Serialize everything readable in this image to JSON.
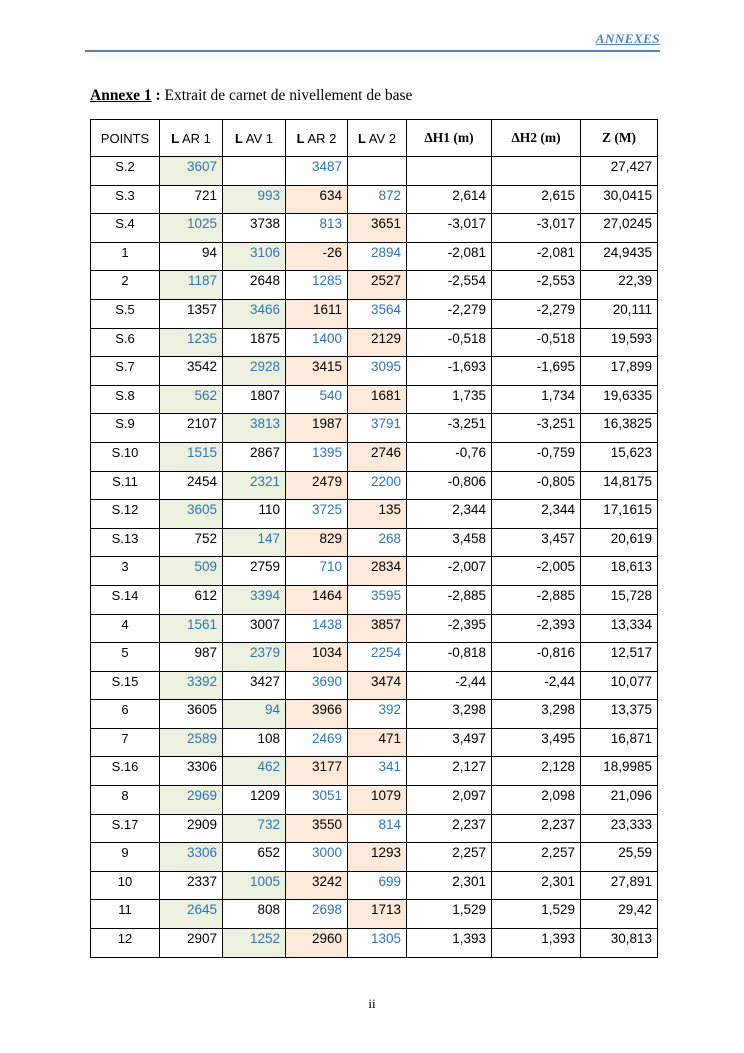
{
  "header": {
    "running_title": "ANNEXES",
    "rule_color": "#4f81bd"
  },
  "title": {
    "prefix": "Annexe 1",
    "colon": " : ",
    "text": "Extrait de carnet de nivellement de base"
  },
  "colors": {
    "accent_blue": "#4f81bd",
    "value_blue": "#2e75b6",
    "fill_green": "#ebf1de",
    "fill_orange": "#fde9d9"
  },
  "table": {
    "headers": [
      "POINTS",
      "L AR 1",
      "L AV 1",
      "L AR 2",
      "L AV 2",
      "ΔH1 (m)",
      "ΔH2 (m)",
      "Z (M)"
    ],
    "rows": [
      {
        "point": "S.2",
        "t": "A",
        "lar1": "3607",
        "lav1": "",
        "lar2": "3487",
        "lav2": "",
        "dh1": "",
        "dh2": "",
        "z": "27,427"
      },
      {
        "point": "S.3",
        "t": "B",
        "lar1": "721",
        "lav1": "993",
        "lar2": "634",
        "lav2": "872",
        "dh1": "2,614",
        "dh2": "2,615",
        "z": "30,0415"
      },
      {
        "point": "S.4",
        "t": "A",
        "lar1": "1025",
        "lav1": "3738",
        "lar2": "813",
        "lav2": "3651",
        "dh1": "-3,017",
        "dh2": "-3,017",
        "z": "27,0245"
      },
      {
        "point": "1",
        "t": "B",
        "lar1": "94",
        "lav1": "3106",
        "lar2": "-26",
        "lav2": "2894",
        "dh1": "-2,081",
        "dh2": "-2,081",
        "z": "24,9435"
      },
      {
        "point": "2",
        "t": "A",
        "lar1": "1187",
        "lav1": "2648",
        "lar2": "1285",
        "lav2": "2527",
        "dh1": "-2,554",
        "dh2": "-2,553",
        "z": "22,39"
      },
      {
        "point": "S.5",
        "t": "B",
        "lar1": "1357",
        "lav1": "3466",
        "lar2": "1611",
        "lav2": "3564",
        "dh1": "-2,279",
        "dh2": "-2,279",
        "z": "20,111"
      },
      {
        "point": "S.6",
        "t": "A",
        "lar1": "1235",
        "lav1": "1875",
        "lar2": "1400",
        "lav2": "2129",
        "dh1": "-0,518",
        "dh2": "-0,518",
        "z": "19,593"
      },
      {
        "point": "S.7",
        "t": "B",
        "lar1": "3542",
        "lav1": "2928",
        "lar2": "3415",
        "lav2": "3095",
        "dh1": "-1,693",
        "dh2": "-1,695",
        "z": "17,899"
      },
      {
        "point": "S.8",
        "t": "A",
        "lar1": "562",
        "lav1": "1807",
        "lar2": "540",
        "lav2": "1681",
        "dh1": "1,735",
        "dh2": "1,734",
        "z": "19,6335"
      },
      {
        "point": "S.9",
        "t": "B",
        "lar1": "2107",
        "lav1": "3813",
        "lar2": "1987",
        "lav2": "3791",
        "dh1": "-3,251",
        "dh2": "-3,251",
        "z": "16,3825"
      },
      {
        "point": "S.10",
        "t": "A",
        "lar1": "1515",
        "lav1": "2867",
        "lar2": "1395",
        "lav2": "2746",
        "dh1": "-0,76",
        "dh2": "-0,759",
        "z": "15,623"
      },
      {
        "point": "S.11",
        "t": "B",
        "lar1": "2454",
        "lav1": "2321",
        "lar2": "2479",
        "lav2": "2200",
        "dh1": "-0,806",
        "dh2": "-0,805",
        "z": "14,8175"
      },
      {
        "point": "S.12",
        "t": "A",
        "lar1": "3605",
        "lav1": "110",
        "lar2": "3725",
        "lav2": "135",
        "dh1": "2,344",
        "dh2": "2,344",
        "z": "17,1615"
      },
      {
        "point": "S.13",
        "t": "B",
        "lar1": "752",
        "lav1": "147",
        "lar2": "829",
        "lav2": "268",
        "dh1": "3,458",
        "dh2": "3,457",
        "z": "20,619"
      },
      {
        "point": "3",
        "t": "A",
        "lar1": "509",
        "lav1": "2759",
        "lar2": "710",
        "lav2": "2834",
        "dh1": "-2,007",
        "dh2": "-2,005",
        "z": "18,613"
      },
      {
        "point": "S.14",
        "t": "B",
        "lar1": "612",
        "lav1": "3394",
        "lar2": "1464",
        "lav2": "3595",
        "dh1": "-2,885",
        "dh2": "-2,885",
        "z": "15,728"
      },
      {
        "point": "4",
        "t": "A",
        "lar1": "1561",
        "lav1": "3007",
        "lar2": "1438",
        "lav2": "3857",
        "dh1": "-2,395",
        "dh2": "-2,393",
        "z": "13,334"
      },
      {
        "point": "5",
        "t": "B",
        "lar1": "987",
        "lav1": "2379",
        "lar2": "1034",
        "lav2": "2254",
        "dh1": "-0,818",
        "dh2": "-0,816",
        "z": "12,517"
      },
      {
        "point": "S.15",
        "t": "A",
        "lar1": "3392",
        "lav1": "3427",
        "lar2": "3690",
        "lav2": "3474",
        "dh1": "-2,44",
        "dh2": "-2,44",
        "z": "10,077"
      },
      {
        "point": "6",
        "t": "B",
        "lar1": "3605",
        "lav1": "94",
        "lar2": "3966",
        "lav2": "392",
        "dh1": "3,298",
        "dh2": "3,298",
        "z": "13,375"
      },
      {
        "point": "7",
        "t": "A",
        "lar1": "2589",
        "lav1": "108",
        "lar2": "2469",
        "lav2": "471",
        "dh1": "3,497",
        "dh2": "3,495",
        "z": "16,871"
      },
      {
        "point": "S.16",
        "t": "B",
        "lar1": "3306",
        "lav1": "462",
        "lar2": "3177",
        "lav2": "341",
        "dh1": "2,127",
        "dh2": "2,128",
        "z": "18,9985"
      },
      {
        "point": "8",
        "t": "A",
        "lar1": "2969",
        "lav1": "1209",
        "lar2": "3051",
        "lav2": "1079",
        "dh1": "2,097",
        "dh2": "2,098",
        "z": "21,096"
      },
      {
        "point": "S.17",
        "t": "B",
        "lar1": "2909",
        "lav1": "732",
        "lar2": "3550",
        "lav2": "814",
        "dh1": "2,237",
        "dh2": "2,237",
        "z": "23,333"
      },
      {
        "point": "9",
        "t": "A",
        "lar1": "3306",
        "lav1": "652",
        "lar2": "3000",
        "lav2": "1293",
        "dh1": "2,257",
        "dh2": "2,257",
        "z": "25,59"
      },
      {
        "point": "10",
        "t": "B",
        "lar1": "2337",
        "lav1": "1005",
        "lar2": "3242",
        "lav2": "699",
        "dh1": "2,301",
        "dh2": "2,301",
        "z": "27,891"
      },
      {
        "point": "11",
        "t": "A",
        "lar1": "2645",
        "lav1": "808",
        "lar2": "2698",
        "lav2": "1713",
        "dh1": "1,529",
        "dh2": "1,529",
        "z": "29,42"
      },
      {
        "point": "12",
        "t": "B",
        "lar1": "2907",
        "lav1": "1252",
        "lar2": "2960",
        "lav2": "1305",
        "dh1": "1,393",
        "dh2": "1,393",
        "z": "30,813"
      }
    ]
  },
  "footer": {
    "page_number": "ii"
  }
}
